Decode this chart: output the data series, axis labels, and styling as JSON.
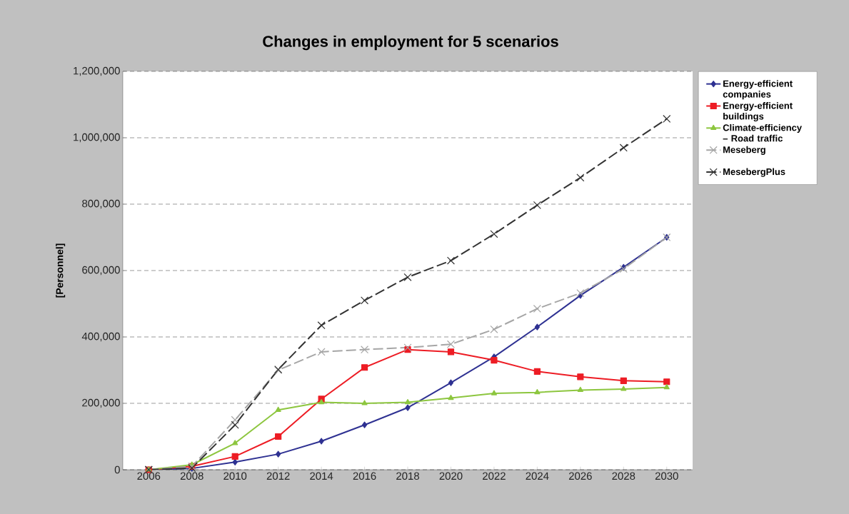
{
  "chart_data": {
    "type": "line",
    "title": "Changes in employment for 5 scenarios",
    "ylabel": "[Personnel]",
    "categories": [
      "2006",
      "2008",
      "2010",
      "2012",
      "2014",
      "2016",
      "2018",
      "2020",
      "2022",
      "2024",
      "2026",
      "2028",
      "2030"
    ],
    "ylim": [
      0,
      1200000
    ],
    "yticks": [
      0,
      {
        "value": 200000,
        "label": "200,000"
      },
      {
        "value": 400000,
        "label": "400,000"
      },
      {
        "value": 600000,
        "label": "600,000"
      },
      {
        "value": 800000,
        "label": "800,000"
      },
      {
        "value": 1000000,
        "label": "1,000,000"
      },
      {
        "value": 1200000,
        "label": "1,200,000"
      }
    ],
    "grid": "y",
    "legend": "right",
    "series": [
      {
        "name": "Energy-efficient companies",
        "color": "#2e3192",
        "marker": "diamond",
        "line_style": "solid",
        "values": [
          0,
          4000,
          23000,
          47000,
          86000,
          135000,
          187000,
          262000,
          340000,
          430000,
          525000,
          610000,
          700000
        ]
      },
      {
        "name": "Energy-efficient buildings",
        "color": "#ed1c24",
        "marker": "square",
        "line_style": "solid",
        "values": [
          0,
          10000,
          40000,
          100000,
          213000,
          308000,
          362000,
          355000,
          330000,
          296000,
          280000,
          268000,
          265000
        ]
      },
      {
        "name": "Climate-efficiency – Road traffic",
        "color": "#8dc63f",
        "marker": "triangle",
        "line_style": "solid",
        "values": [
          0,
          15000,
          80000,
          180000,
          203000,
          200000,
          203000,
          216000,
          230000,
          233000,
          240000,
          243000,
          248000
        ]
      },
      {
        "name": "Meseberg",
        "color": "#a6a6a6",
        "marker": "cross",
        "line_style": "dashed",
        "values": [
          0,
          10000,
          150000,
          300000,
          355000,
          362000,
          368000,
          378000,
          423000,
          485000,
          532000,
          605000,
          700000
        ]
      },
      {
        "name": "MesebergPlus",
        "color": "#333333",
        "marker": "cross",
        "line_style": "dashed",
        "values": [
          0,
          5000,
          135000,
          302000,
          435000,
          510000,
          580000,
          630000,
          710000,
          797000,
          880000,
          970000,
          1057000
        ]
      }
    ]
  }
}
